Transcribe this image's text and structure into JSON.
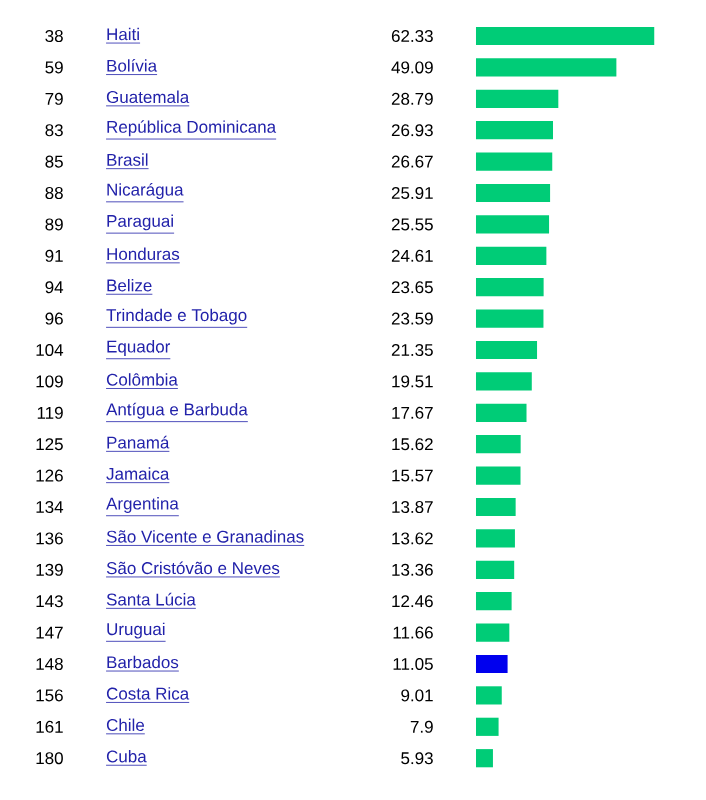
{
  "chart_data": {
    "type": "bar",
    "orientation": "horizontal",
    "data_labels": true,
    "categories": [
      "Haiti",
      "Bolívia",
      "Guatemala",
      "República Dominicana",
      "Brasil",
      "Nicarágua",
      "Paraguai",
      "Honduras",
      "Belize",
      "Trindade e Tobago",
      "Equador",
      "Colômbia",
      "Antígua e Barbuda",
      "Panamá",
      "Jamaica",
      "Argentina",
      "São Vicente e Granadinas",
      "São Cristóvão e Neves",
      "Santa Lúcia",
      "Uruguai",
      "Barbados",
      "Costa Rica",
      "Chile",
      "Cuba"
    ],
    "values": [
      62.33,
      49.09,
      28.79,
      26.93,
      26.67,
      25.91,
      25.55,
      24.61,
      23.65,
      23.59,
      21.35,
      19.51,
      17.67,
      15.62,
      15.57,
      13.87,
      13.62,
      13.36,
      12.46,
      11.66,
      11.05,
      9.01,
      7.9,
      5.93
    ],
    "value_labels": [
      "62.33",
      "49.09",
      "28.79",
      "26.93",
      "26.67",
      "25.91",
      "25.55",
      "24.61",
      "23.65",
      "23.59",
      "21.35",
      "19.51",
      "17.67",
      "15.62",
      "15.57",
      "13.87",
      "13.62",
      "13.36",
      "12.46",
      "11.66",
      "11.05",
      "9.01",
      "7.9",
      "5.93"
    ],
    "colors": [
      "#00cc77",
      "#00cc77",
      "#00cc77",
      "#00cc77",
      "#00cc77",
      "#00cc77",
      "#00cc77",
      "#00cc77",
      "#00cc77",
      "#00cc77",
      "#00cc77",
      "#00cc77",
      "#00cc77",
      "#00cc77",
      "#00cc77",
      "#00cc77",
      "#00cc77",
      "#00cc77",
      "#00cc77",
      "#00cc77",
      "#0000ee",
      "#00cc77",
      "#00cc77",
      "#00cc77"
    ],
    "annotations": [
      "38",
      "59",
      "79",
      "83",
      "85",
      "88",
      "89",
      "91",
      "94",
      "96",
      "104",
      "109",
      "119",
      "125",
      "126",
      "134",
      "136",
      "139",
      "143",
      "147",
      "148",
      "156",
      "161",
      "180"
    ]
  }
}
